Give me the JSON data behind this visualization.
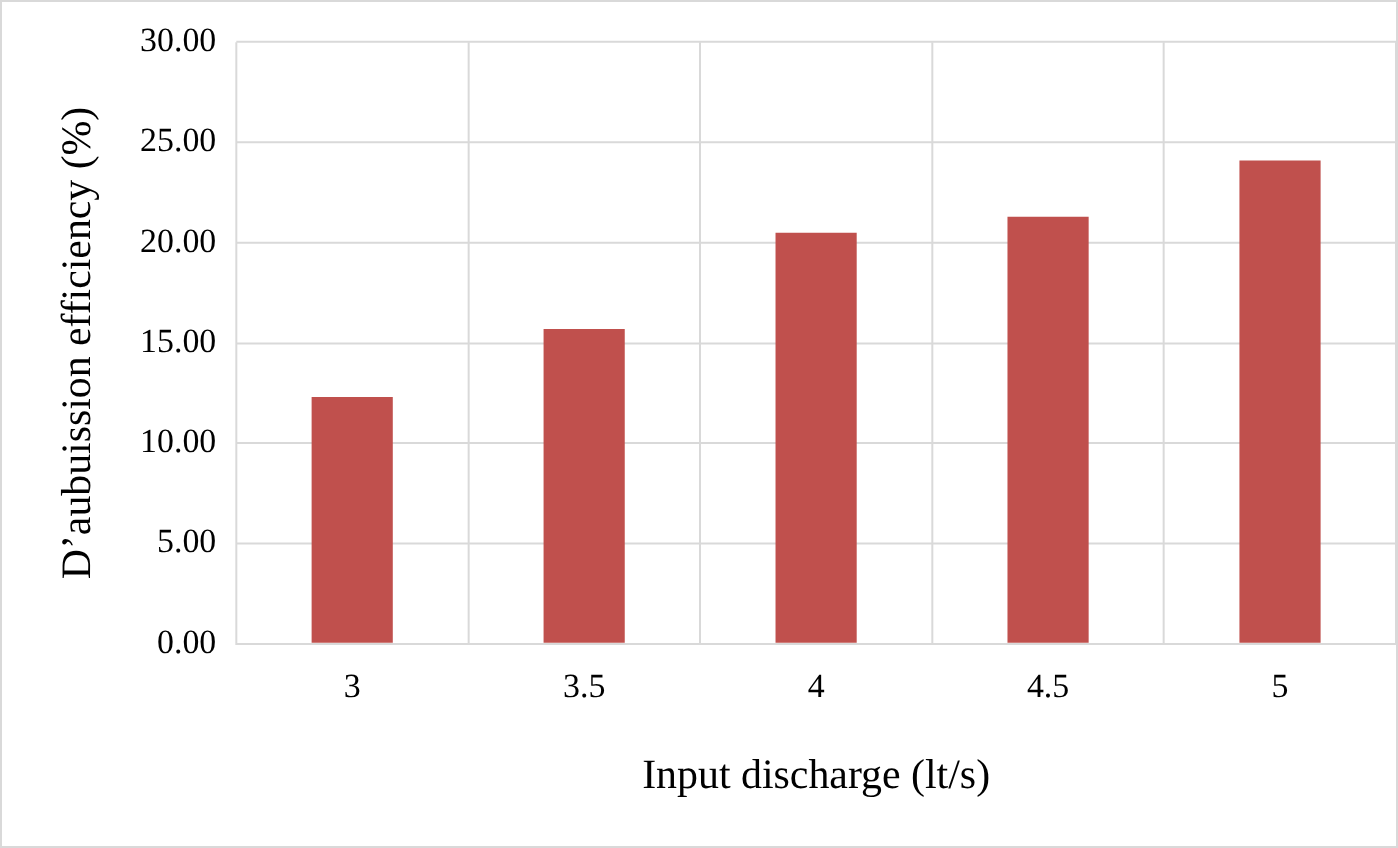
{
  "chart_data": {
    "type": "bar",
    "xlabel": "Input discharge (lt/s)",
    "ylabel": "D’aubuission efficiency (%)",
    "categories": [
      "3",
      "3.5",
      "4",
      "4.5",
      "5"
    ],
    "values": [
      12.3,
      15.7,
      20.5,
      21.3,
      24.1
    ],
    "color": "#c0504d",
    "ylim": [
      0,
      30
    ],
    "yticks": [
      {
        "value": 0,
        "label": "0.00"
      },
      {
        "value": 5,
        "label": "5.00"
      },
      {
        "value": 10,
        "label": "10.00"
      },
      {
        "value": 15,
        "label": "15.00"
      },
      {
        "value": 20,
        "label": "20.00"
      },
      {
        "value": 25,
        "label": "25.00"
      },
      {
        "value": 30,
        "label": "30.00"
      }
    ],
    "grid": true,
    "legend": false
  }
}
